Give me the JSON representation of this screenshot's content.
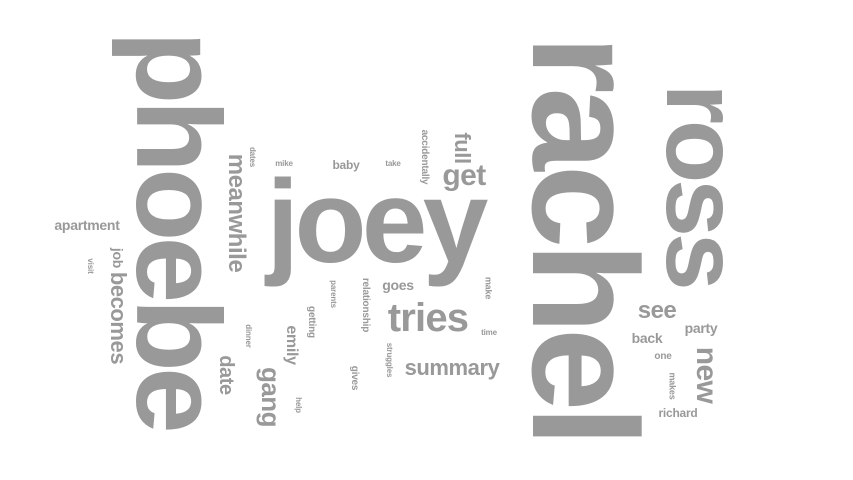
{
  "word_color": "#999999",
  "background": "#ffffff",
  "words": {
    "rachel": "rachel",
    "phoebe": "phoebe",
    "joey": "joey",
    "ross": "ross",
    "meanwhile": "meanwhile",
    "tries": "tries",
    "get": "get",
    "full": "full",
    "summary": "summary",
    "new": "new",
    "see": "see",
    "gang": "gang",
    "becomes": "becomes",
    "apartment": "apartment",
    "emily": "emily",
    "goes": "goes",
    "party": "party",
    "back": "back",
    "job": "job",
    "date": "date",
    "baby": "baby",
    "richard": "richard",
    "relationship": "relationship",
    "accidentally": "accidentally",
    "getting": "getting",
    "gives": "gives",
    "one": "one",
    "makes": "makes",
    "make": "make",
    "time": "time",
    "mike": "mike",
    "dates": "dates",
    "take": "take",
    "parents": "parents",
    "struggles": "struggles",
    "dinner": "dinner",
    "help": "help",
    "visit": "visit"
  }
}
